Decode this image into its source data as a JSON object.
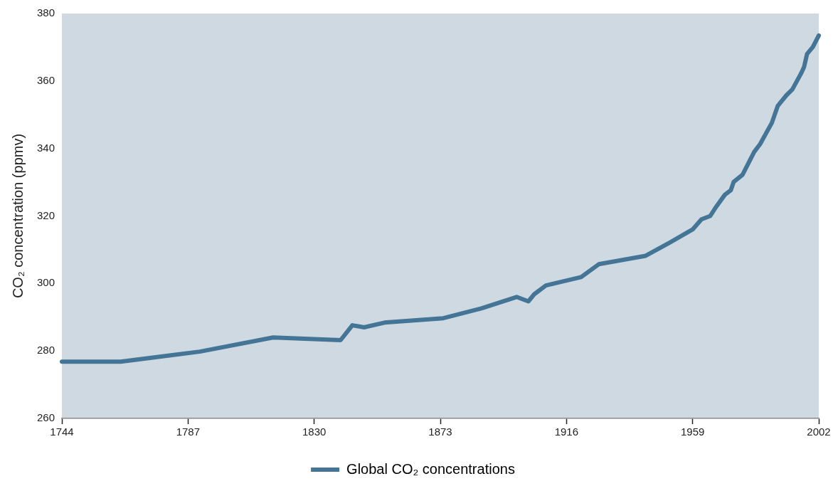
{
  "chart_data": {
    "type": "line",
    "ylabel": "CO₂ concentration (ppmv)",
    "xlim": [
      1744,
      2002
    ],
    "xticks": [
      1744,
      1787,
      1830,
      1873,
      1916,
      1959,
      2002
    ],
    "ylim": [
      260,
      380
    ],
    "yticks": [
      260,
      280,
      300,
      320,
      340,
      360,
      380
    ],
    "grid": false,
    "legend": "bottom",
    "marker": "none",
    "line_style": "solid",
    "x": [
      1744,
      1764,
      1791,
      1816,
      1839,
      1843,
      1847,
      1854,
      1874,
      1887,
      1899,
      1903,
      1905,
      1909,
      1921,
      1927,
      1943,
      1951,
      1959,
      1962,
      1965,
      1967,
      1970,
      1972,
      1973,
      1976,
      1980,
      1982,
      1986,
      1988,
      1991,
      1993,
      1996,
      1997,
      1998,
      2000,
      2002
    ],
    "series": [
      {
        "name": "Global CO₂ concentrations",
        "color": "#457596",
        "values": [
          276.8,
          276.8,
          279.8,
          284.0,
          283.2,
          287.6,
          287.0,
          288.4,
          289.7,
          292.6,
          296.0,
          294.7,
          296.8,
          299.4,
          301.9,
          305.7,
          308.2,
          312.0,
          316.0,
          319.0,
          320.0,
          322.7,
          326.3,
          327.6,
          330.1,
          332.2,
          339.0,
          341.3,
          347.6,
          352.6,
          355.8,
          357.5,
          362.3,
          364.2,
          368.0,
          370.1,
          373.5
        ]
      }
    ]
  }
}
